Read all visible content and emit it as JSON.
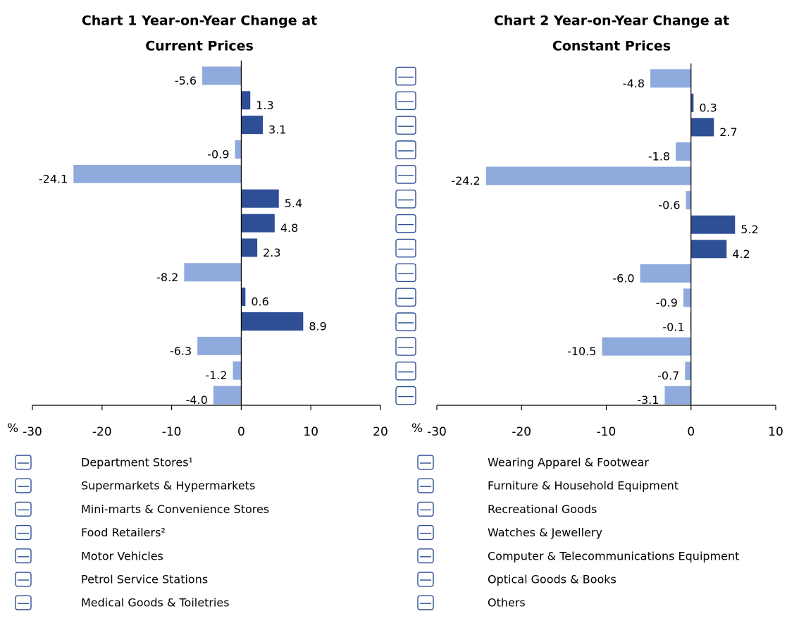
{
  "categories": [
    "Department Stores¹",
    "Supermarkets & Hypermarkets",
    "Mini-marts & Convenience Stores",
    "Food Retailers²",
    "Motor Vehicles",
    "Petrol Service Stations",
    "Medical Goods & Toiletries",
    "Wearing Apparel & Footwear",
    "Furniture & Household Equipment",
    "Recreational Goods",
    "Watches & Jewellery",
    "Computer & Telecommunications Equipment",
    "Optical Goods & Books",
    "Others"
  ],
  "chart_data": [
    {
      "type": "hbar",
      "title": [
        "Chart 1  Year-on-Year Change at",
        "Current Prices"
      ],
      "axis_label": "%",
      "values": [
        -5.6,
        1.3,
        3.1,
        -0.9,
        -24.1,
        5.4,
        4.8,
        2.3,
        -8.2,
        0.6,
        8.9,
        -6.3,
        -1.2,
        -4.0
      ],
      "value_labels": [
        "-5.6",
        "1.3",
        "3.1",
        "-0.9",
        "-24.1",
        "5.4",
        "4.8",
        "2.3",
        "-8.2",
        "0.6",
        "8.9",
        "-6.3",
        "-1.2",
        "-4.0"
      ],
      "positive_color": "#2e4f96",
      "negative_color": "#8faadc",
      "xlim": [
        -30,
        20
      ],
      "xticks": [
        -30,
        -20,
        -10,
        0,
        10,
        20
      ]
    },
    {
      "type": "hbar",
      "title": [
        "Chart 2  Year-on-Year Change at",
        "Constant Prices"
      ],
      "axis_label": "%",
      "values": [
        -4.8,
        0.3,
        2.7,
        -1.8,
        -24.2,
        -0.6,
        5.2,
        4.2,
        -6.0,
        -0.9,
        -0.1,
        -10.5,
        -0.7,
        -3.1
      ],
      "value_labels": [
        "-4.8",
        "0.3",
        "2.7",
        "-1.8",
        "-24.2",
        "-0.6",
        "5.2",
        "4.2",
        "-6.0",
        "-0.9",
        "-0.1",
        "-10.5",
        "-0.7",
        "-3.1"
      ],
      "positive_color": "#2e4f96",
      "negative_color": "#8faadc",
      "xlim": [
        -30,
        10
      ],
      "xticks": [
        -30,
        -20,
        -10,
        0,
        10
      ]
    }
  ]
}
